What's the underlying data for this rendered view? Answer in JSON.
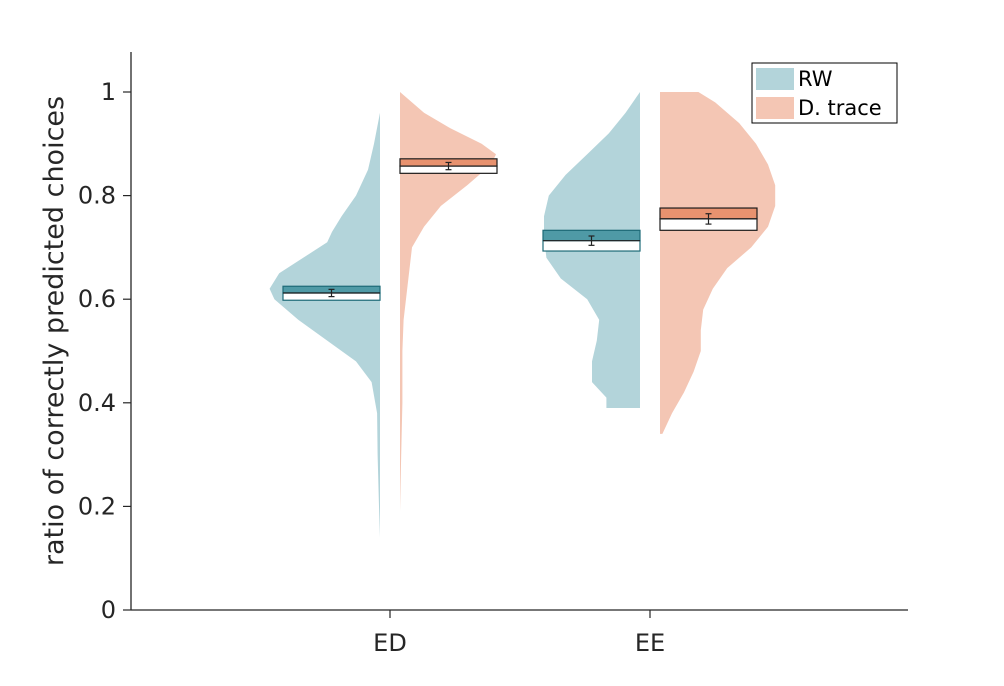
{
  "chart_data": {
    "type": "violin",
    "xlabel": "",
    "ylabel": "ratio of correctly predicted choices",
    "ylim": [
      0,
      1.08
    ],
    "yticks": [
      0,
      0.2,
      0.4,
      0.6,
      0.8,
      1
    ],
    "ytick_labels": [
      "0",
      "0.2",
      "0.4",
      "0.6",
      "0.8",
      "1"
    ],
    "categories": [
      "ED",
      "EE"
    ],
    "grid": false,
    "legend_position": "top-right",
    "series": [
      {
        "name": "RW",
        "side": "left",
        "color": "#b3d4da",
        "box_fill": "#4f9aa6",
        "box_edge": "#1d6a77",
        "groups": [
          {
            "category": "ED",
            "mean": 0.612,
            "sem": 0.007,
            "box_low": 0.598,
            "box_high": 0.625,
            "density": [
              [
                0.14,
                0.0
              ],
              [
                0.2,
                0.004
              ],
              [
                0.3,
                0.01
              ],
              [
                0.38,
                0.012
              ],
              [
                0.44,
                0.035
              ],
              [
                0.48,
                0.1
              ],
              [
                0.52,
                0.22
              ],
              [
                0.56,
                0.34
              ],
              [
                0.6,
                0.44
              ],
              [
                0.62,
                0.46
              ],
              [
                0.65,
                0.42
              ],
              [
                0.68,
                0.32
              ],
              [
                0.71,
                0.22
              ],
              [
                0.73,
                0.2
              ],
              [
                0.76,
                0.16
              ],
              [
                0.8,
                0.1
              ],
              [
                0.85,
                0.05
              ],
              [
                0.9,
                0.025
              ],
              [
                0.96,
                0.0
              ]
            ]
          },
          {
            "category": "EE",
            "mean": 0.713,
            "sem": 0.009,
            "box_low": 0.693,
            "box_high": 0.733,
            "density": [
              [
                0.39,
                0.14
              ],
              [
                0.41,
                0.14
              ],
              [
                0.44,
                0.2
              ],
              [
                0.48,
                0.2
              ],
              [
                0.52,
                0.18
              ],
              [
                0.56,
                0.17
              ],
              [
                0.6,
                0.22
              ],
              [
                0.64,
                0.33
              ],
              [
                0.68,
                0.39
              ],
              [
                0.72,
                0.4
              ],
              [
                0.76,
                0.4
              ],
              [
                0.8,
                0.38
              ],
              [
                0.84,
                0.31
              ],
              [
                0.88,
                0.22
              ],
              [
                0.92,
                0.13
              ],
              [
                0.96,
                0.06
              ],
              [
                1.0,
                0.0
              ]
            ]
          }
        ]
      },
      {
        "name": "D. trace",
        "side": "right",
        "color": "#f4c6b4",
        "box_fill": "#e8926f",
        "box_edge": "#1c1c1c",
        "groups": [
          {
            "category": "ED",
            "mean": 0.857,
            "sem": 0.007,
            "box_low": 0.843,
            "box_high": 0.871,
            "density": [
              [
                0.19,
                0.0
              ],
              [
                0.3,
                0.005
              ],
              [
                0.4,
                0.01
              ],
              [
                0.5,
                0.01
              ],
              [
                0.56,
                0.015
              ],
              [
                0.62,
                0.03
              ],
              [
                0.66,
                0.04
              ],
              [
                0.7,
                0.05
              ],
              [
                0.74,
                0.1
              ],
              [
                0.78,
                0.17
              ],
              [
                0.82,
                0.28
              ],
              [
                0.86,
                0.38
              ],
              [
                0.88,
                0.4
              ],
              [
                0.9,
                0.34
              ],
              [
                0.93,
                0.21
              ],
              [
                0.96,
                0.1
              ],
              [
                1.0,
                0.0
              ]
            ]
          },
          {
            "category": "EE",
            "mean": 0.755,
            "sem": 0.01,
            "box_low": 0.733,
            "box_high": 0.776,
            "density": [
              [
                0.34,
                0.01
              ],
              [
                0.38,
                0.05
              ],
              [
                0.42,
                0.1
              ],
              [
                0.46,
                0.14
              ],
              [
                0.5,
                0.17
              ],
              [
                0.54,
                0.17
              ],
              [
                0.58,
                0.18
              ],
              [
                0.62,
                0.22
              ],
              [
                0.66,
                0.28
              ],
              [
                0.7,
                0.38
              ],
              [
                0.74,
                0.45
              ],
              [
                0.78,
                0.48
              ],
              [
                0.82,
                0.48
              ],
              [
                0.86,
                0.45
              ],
              [
                0.9,
                0.4
              ],
              [
                0.94,
                0.33
              ],
              [
                0.98,
                0.23
              ],
              [
                1.0,
                0.16
              ]
            ]
          }
        ]
      }
    ]
  }
}
